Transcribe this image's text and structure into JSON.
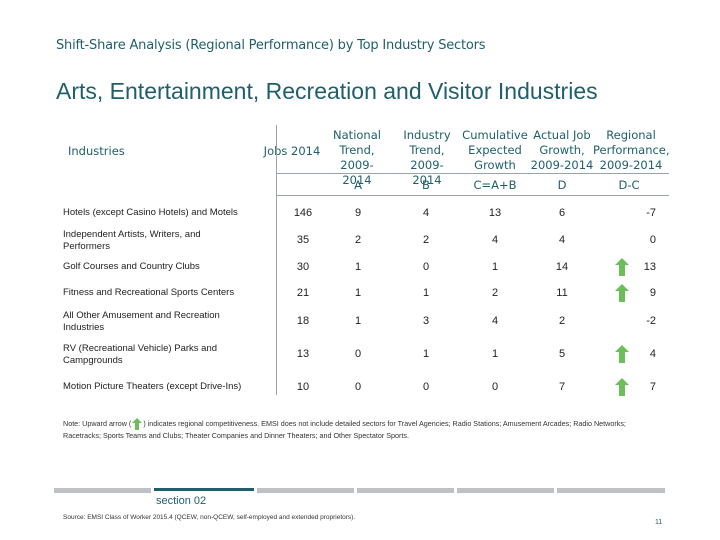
{
  "subtitle": "Shift-Share Analysis (Regional Performance) by Top Industry Sectors",
  "title": "Arts, Entertainment, Recreation and Visitor Industries",
  "table": {
    "headers": {
      "industries": "Industries",
      "jobs": "Jobs 2014",
      "national_1": "National",
      "national_2": "Trend, 2009-",
      "national_3": "2014",
      "industry_1": "Industry",
      "industry_2": "Trend, 2009-",
      "industry_3": "2014",
      "cumulative_1": "Cumulative",
      "cumulative_2": "Expected",
      "cumulative_3": "Growth",
      "actual_1": "Actual Job",
      "actual_2": "Growth,",
      "actual_3": "2009-2014",
      "regional_1": "Regional",
      "regional_2": "Performance,",
      "regional_3": "2009-2014"
    },
    "subheaders": {
      "a": "A",
      "b": "B",
      "c": "C=A+B",
      "d": "D",
      "dc": "D-C"
    },
    "rows": [
      {
        "label": "Hotels (except Casino Hotels) and Motels",
        "jobs": "146",
        "a": "9",
        "b": "4",
        "c": "13",
        "d": "6",
        "dc": "-7",
        "arrow": false
      },
      {
        "label": "Independent Artists, Writers, and Performers",
        "jobs": "35",
        "a": "2",
        "b": "2",
        "c": "4",
        "d": "4",
        "dc": "0",
        "arrow": false
      },
      {
        "label": "Golf Courses and Country Clubs",
        "jobs": "30",
        "a": "1",
        "b": "0",
        "c": "1",
        "d": "14",
        "dc": "13",
        "arrow": true
      },
      {
        "label": "Fitness and Recreational Sports Centers",
        "jobs": "21",
        "a": "1",
        "b": "1",
        "c": "2",
        "d": "11",
        "dc": "9",
        "arrow": true
      },
      {
        "label": "All Other Amusement and Recreation Industries",
        "jobs": "18",
        "a": "1",
        "b": "3",
        "c": "4",
        "d": "2",
        "dc": "-2",
        "arrow": false
      },
      {
        "label": "RV (Recreational Vehicle) Parks and Campgrounds",
        "jobs": "13",
        "a": "0",
        "b": "1",
        "c": "1",
        "d": "5",
        "dc": "4",
        "arrow": true
      },
      {
        "label": "Motion Picture Theaters (except Drive-Ins)",
        "jobs": "10",
        "a": "0",
        "b": "0",
        "c": "0",
        "d": "7",
        "dc": "7",
        "arrow": true
      }
    ]
  },
  "note": {
    "before": "Note: Upward arrow (",
    "after": ") indicates regional competitiveness. EMSI does not include detailed sectors for Travel Agencies; Radio Stations; Amusement Arcades; Radio Networks; Racetracks; Sports Teams and Clubs; Theater Companies and Dinner Theaters; and Other Spectator Sports."
  },
  "footer": {
    "section": "section 02",
    "source": "Source: EMSI Class of Worker 2015.4 (QCEW, non-QCEW, self-employed and extended proprietors).",
    "page": "11"
  },
  "colors": {
    "accent": "#1f5f6b",
    "arrow_green": "#6bbf59",
    "bar_gray": "#bfc2c4"
  },
  "icons": {
    "arrow": "up-arrow-icon"
  }
}
